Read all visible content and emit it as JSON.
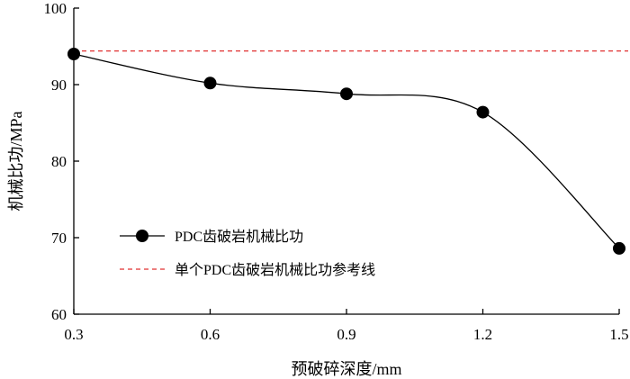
{
  "chart_data": {
    "type": "line",
    "xlabel": "预破碎深度/mm",
    "ylabel": "机械比功/MPa",
    "xlim": [
      0.3,
      1.5
    ],
    "ylim": [
      60,
      100
    ],
    "x_ticks": [
      "0.3",
      "0.6",
      "0.9",
      "1.2",
      "1.5"
    ],
    "y_ticks": [
      "60",
      "70",
      "80",
      "90",
      "100"
    ],
    "grid": false,
    "legend_placement": "lower-left",
    "series": [
      {
        "name": "PDC齿破岩机械比功",
        "style": "solid line with filled circle markers",
        "color": "#000000",
        "x": [
          0.3,
          0.6,
          0.9,
          1.2,
          1.5
        ],
        "y": [
          94.0,
          90.2,
          88.8,
          86.4,
          68.6
        ]
      },
      {
        "name": "单个PDC齿破岩机械比功参考线",
        "style": "dashed horizontal line",
        "color": "#e03030",
        "y_value": 94.4
      }
    ]
  }
}
